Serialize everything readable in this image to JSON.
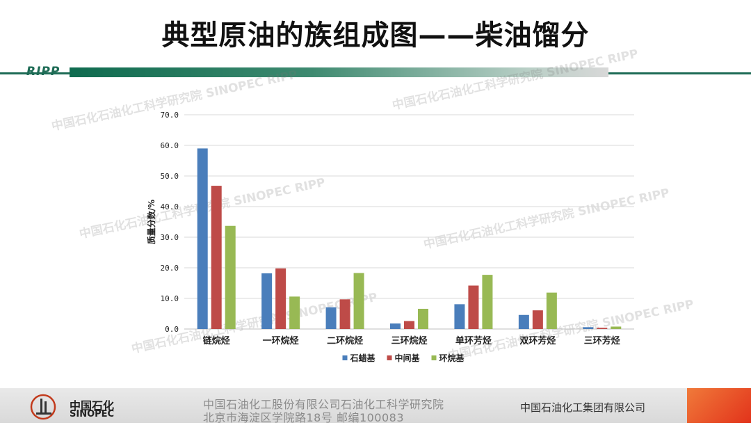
{
  "slide": {
    "title": "典型原油的族组成图——柴油馏分",
    "brand": "RIPP"
  },
  "watermarks": [
    "中国石化石油化工科学研究院 SINOPEC RIPP",
    "中国石化石油化工科学研究院 SINOPEC RIPP",
    "中国石化石油化工科学研究院 SINOPEC RIPP",
    "中国石化石油化工科学研究院 SINOPEC RIPP",
    "中国石化石油化工科学研究院 SINOPEC RIPP",
    "中国石化石油化工科学研究院 SINOPEC RIPP"
  ],
  "footer": {
    "logo_cn": "中国石化",
    "logo_en": "SINOPEC",
    "address_line1": "中国石油化工股份有限公司石油化工科学研究院",
    "address_line2": "北京市海淀区学院路18号   邮编100083",
    "group_name": "中国石油化工集团有限公司"
  },
  "colors": {
    "series_1": "#4a7ebb",
    "series_2": "#be4b48",
    "series_3": "#98b954",
    "gridline": "#d9d9d9",
    "header_green": "#1d6b55"
  },
  "chart_data": {
    "type": "bar",
    "title": "",
    "xlabel": "",
    "ylabel": "质量分数/%",
    "ylim": [
      0,
      70
    ],
    "yticks": [
      "0.0",
      "10.0",
      "20.0",
      "30.0",
      "40.0",
      "50.0",
      "60.0",
      "70.0"
    ],
    "grid": true,
    "legend_position": "bottom",
    "categories": [
      "链烷烃",
      "一环烷烃",
      "二环烷烃",
      "三环烷烃",
      "单环芳烃",
      "双环芳烃",
      "三环芳烃"
    ],
    "series": [
      {
        "name": "石蜡基",
        "values": [
          59.0,
          18.2,
          7.1,
          1.8,
          8.1,
          4.6,
          0.6
        ]
      },
      {
        "name": "中间基",
        "values": [
          46.8,
          19.8,
          9.7,
          2.6,
          14.2,
          6.1,
          0.4
        ]
      },
      {
        "name": "环烷基",
        "values": [
          33.7,
          10.6,
          18.3,
          6.6,
          17.7,
          11.9,
          0.8
        ]
      }
    ]
  }
}
